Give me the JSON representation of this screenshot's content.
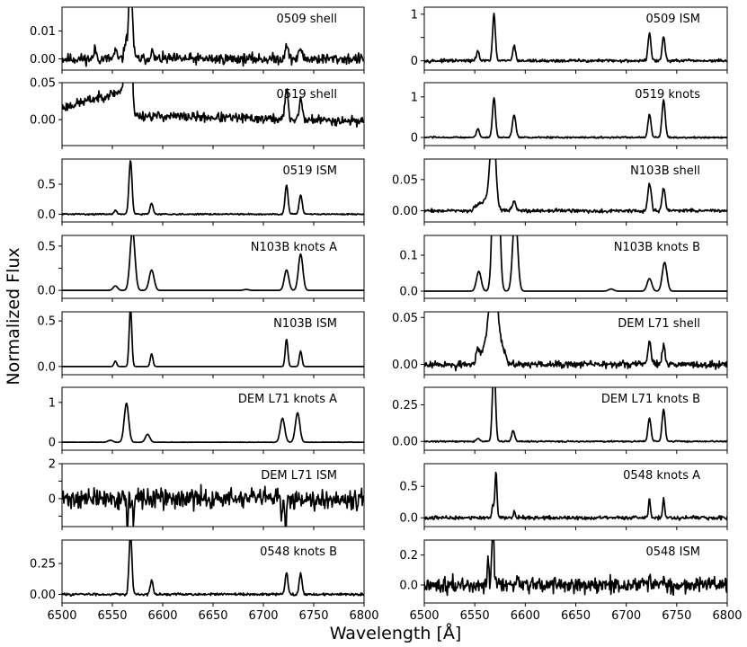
{
  "figure": {
    "ylabel": "Normalized Flux",
    "xlabel": "Wavelength [Å]"
  },
  "chart_data": [
    {
      "type": "line",
      "panel": "0509 shell",
      "xlim": [
        6500,
        6800
      ],
      "yticks": [
        0.0,
        0.01
      ],
      "ytick_labels": [
        "0.00",
        "0.01"
      ],
      "ylim": [
        -0.004,
        0.0185
      ],
      "lines": [
        {
          "w": 6533,
          "h": 0.0035,
          "s": 1.2
        },
        {
          "w": 6553,
          "h": 0.003,
          "s": 1.2
        },
        {
          "w": 6563,
          "h": 0.006,
          "s": 1.2
        },
        {
          "w": 6568,
          "h": 0.03,
          "s": 1.8
        },
        {
          "w": 6589,
          "h": 0.003,
          "s": 1.3
        },
        {
          "w": 6723,
          "h": 0.0055,
          "s": 1.4
        },
        {
          "w": 6737,
          "h": 0.004,
          "s": 1.4
        }
      ],
      "noise": 0.0012,
      "slope": [
        0.0,
        0.0
      ],
      "seed": 11
    },
    {
      "type": "line",
      "panel": "0519 shell",
      "xlim": [
        6500,
        6800
      ],
      "yticks": [
        0.0,
        0.05
      ],
      "ytick_labels": [
        "0.00",
        "0.05"
      ],
      "ylim": [
        -0.035,
        0.05
      ],
      "lines": [
        {
          "w": 6563,
          "h": 0.02,
          "s": 2
        },
        {
          "w": 6568,
          "h": 0.16,
          "s": 1.5
        },
        {
          "w": 6723,
          "h": 0.04,
          "s": 1.5
        },
        {
          "w": 6737,
          "h": 0.028,
          "s": 1.5
        }
      ],
      "noise": 0.004,
      "slope": [
        0.008,
        -0.002
      ],
      "ramp": {
        "start": 6500,
        "end": 6565,
        "v0": 0.008,
        "v1": 0.035
      },
      "seed": 23
    },
    {
      "type": "line",
      "panel": "0519 ISM",
      "xlim": [
        6500,
        6800
      ],
      "yticks": [
        0.0,
        0.5
      ],
      "ytick_labels": [
        "0.0",
        "0.5"
      ],
      "ylim": [
        -0.13,
        0.92
      ],
      "lines": [
        {
          "w": 6553,
          "h": 0.07,
          "s": 1.3
        },
        {
          "w": 6568,
          "h": 0.9,
          "s": 1.5
        },
        {
          "w": 6589,
          "h": 0.18,
          "s": 1.5
        },
        {
          "w": 6723,
          "h": 0.48,
          "s": 1.5
        },
        {
          "w": 6737,
          "h": 0.32,
          "s": 1.5
        }
      ],
      "noise": 0.007,
      "slope": [
        0.0,
        0.0
      ],
      "seed": 31
    },
    {
      "type": "line",
      "panel": "N103B knots A",
      "xlim": [
        6500,
        6800
      ],
      "yticks": [
        0.0,
        0.25,
        0.5
      ],
      "ytick_labels": [
        "0.0",
        "",
        "0.5"
      ],
      "ylim": [
        -0.09,
        0.62
      ],
      "lines": [
        {
          "w": 6553,
          "h": 0.05,
          "s": 2.2
        },
        {
          "w": 6570,
          "h": 0.68,
          "s": 2.4
        },
        {
          "w": 6589,
          "h": 0.23,
          "s": 2.4
        },
        {
          "w": 6683,
          "h": 0.01,
          "s": 2.5
        },
        {
          "w": 6723,
          "h": 0.23,
          "s": 2.2
        },
        {
          "w": 6737,
          "h": 0.41,
          "s": 2.2
        }
      ],
      "noise": 0.0,
      "slope": [
        0.0,
        0.0
      ],
      "seed": 41
    },
    {
      "type": "line",
      "panel": "N103B ISM",
      "xlim": [
        6500,
        6800
      ],
      "yticks": [
        0.0,
        0.5
      ],
      "ytick_labels": [
        "0.0",
        "0.5"
      ],
      "ylim": [
        -0.09,
        0.6
      ],
      "lines": [
        {
          "w": 6553,
          "h": 0.06,
          "s": 1.3
        },
        {
          "w": 6568,
          "h": 0.65,
          "s": 1.3
        },
        {
          "w": 6589,
          "h": 0.14,
          "s": 1.3
        },
        {
          "w": 6723,
          "h": 0.3,
          "s": 1.3
        },
        {
          "w": 6737,
          "h": 0.17,
          "s": 1.3
        }
      ],
      "noise": 0.0,
      "slope": [
        0.0,
        0.0
      ],
      "seed": 53
    },
    {
      "type": "line",
      "panel": "DEM L71 knots A",
      "xlim": [
        6500,
        6800
      ],
      "yticks": [
        0.0,
        1.0
      ],
      "ytick_labels": [
        "0",
        "1"
      ],
      "ylim": [
        -0.2,
        1.38
      ],
      "lines": [
        {
          "w": 6548,
          "h": 0.05,
          "s": 2.3
        },
        {
          "w": 6564,
          "h": 0.98,
          "s": 2.2
        },
        {
          "w": 6585,
          "h": 0.2,
          "s": 2.2
        },
        {
          "w": 6719,
          "h": 0.6,
          "s": 2.2
        },
        {
          "w": 6734,
          "h": 0.74,
          "s": 2.2
        }
      ],
      "noise": 0.003,
      "slope": [
        0.0,
        0.0
      ],
      "seed": 61
    },
    {
      "type": "line",
      "panel": "DEM L71 ISM",
      "xlim": [
        6500,
        6800
      ],
      "yticks": [
        -1.0,
        0.0,
        1.0,
        2.0
      ],
      "ytick_labels": [
        "",
        "0",
        "",
        "2"
      ],
      "ylim": [
        -1.6,
        2.0
      ],
      "lines": [],
      "noise": 0.35,
      "slope": [
        0.0,
        0.0
      ],
      "spikes": [
        {
          "w": 6565,
          "h": -1.8
        },
        {
          "w": 6571,
          "h": -1.5
        },
        {
          "w": 6718,
          "h": -1.4
        },
        {
          "w": 6722,
          "h": -1.8
        }
      ],
      "seed": 71
    },
    {
      "type": "line",
      "panel": "0548 knots B",
      "xlim": [
        6500,
        6800
      ],
      "yticks": [
        0.0,
        0.25
      ],
      "ytick_labels": [
        "0.00",
        "0.25"
      ],
      "ylim": [
        -0.07,
        0.44
      ],
      "lines": [
        {
          "w": 6553,
          "h": 0.01,
          "s": 1.2
        },
        {
          "w": 6568,
          "h": 0.5,
          "s": 1.4
        },
        {
          "w": 6589,
          "h": 0.11,
          "s": 1.4
        },
        {
          "w": 6723,
          "h": 0.17,
          "s": 1.4
        },
        {
          "w": 6737,
          "h": 0.17,
          "s": 1.4
        }
      ],
      "noise": 0.006,
      "slope": [
        0.0,
        0.0
      ],
      "seed": 83
    },
    {
      "type": "line",
      "panel": "0509 ISM",
      "xlim": [
        6500,
        6800
      ],
      "yticks": [
        0.0,
        0.5,
        1.0
      ],
      "ytick_labels": [
        "0",
        "",
        "1"
      ],
      "ylim": [
        -0.2,
        1.15
      ],
      "lines": [
        {
          "w": 6553,
          "h": 0.22,
          "s": 1.3
        },
        {
          "w": 6569,
          "h": 0.98,
          "s": 1.4
        },
        {
          "w": 6589,
          "h": 0.32,
          "s": 1.4
        },
        {
          "w": 6723,
          "h": 0.6,
          "s": 1.4
        },
        {
          "w": 6737,
          "h": 0.52,
          "s": 1.4
        }
      ],
      "noise": 0.02,
      "slope": [
        0.0,
        0.0
      ],
      "seed": 97
    },
    {
      "type": "line",
      "panel": "0519 knots",
      "xlim": [
        6500,
        6800
      ],
      "yticks": [
        0.0,
        0.5,
        1.0
      ],
      "ytick_labels": [
        "0",
        "",
        "1"
      ],
      "ylim": [
        -0.2,
        1.35
      ],
      "lines": [
        {
          "w": 6553,
          "h": 0.22,
          "s": 1.5
        },
        {
          "w": 6569,
          "h": 0.97,
          "s": 1.5
        },
        {
          "w": 6589,
          "h": 0.55,
          "s": 1.7
        },
        {
          "w": 6723,
          "h": 0.58,
          "s": 1.5
        },
        {
          "w": 6737,
          "h": 0.92,
          "s": 1.6
        }
      ],
      "noise": 0.012,
      "slope": [
        0.0,
        0.0
      ],
      "seed": 103
    },
    {
      "type": "line",
      "panel": "N103B shell",
      "xlim": [
        6500,
        6800
      ],
      "yticks": [
        0.0,
        0.05
      ],
      "ytick_labels": [
        "0.00",
        "0.05"
      ],
      "ylim": [
        -0.018,
        0.083
      ],
      "lines": [
        {
          "w": 6553,
          "h": 0.008,
          "s": 3
        },
        {
          "w": 6562,
          "h": 0.02,
          "s": 4
        },
        {
          "w": 6568,
          "h": 0.14,
          "s": 2.6
        },
        {
          "w": 6589,
          "h": 0.015,
          "s": 1.8
        },
        {
          "w": 6723,
          "h": 0.045,
          "s": 1.6
        },
        {
          "w": 6737,
          "h": 0.035,
          "s": 1.6
        }
      ],
      "noise": 0.0018,
      "slope": [
        0.0,
        0.0
      ],
      "seed": 109
    },
    {
      "type": "line",
      "panel": "N103B knots B",
      "xlim": [
        6500,
        6800
      ],
      "yticks": [
        0.0,
        0.05,
        0.1
      ],
      "ytick_labels": [
        "0.0",
        "",
        "0.1"
      ],
      "ylim": [
        -0.02,
        0.155
      ],
      "lines": [
        {
          "w": 6554,
          "h": 0.055,
          "s": 2.3
        },
        {
          "w": 6571,
          "h": 0.7,
          "s": 2.6
        },
        {
          "w": 6590,
          "h": 0.22,
          "s": 2.4
        },
        {
          "w": 6685,
          "h": 0.006,
          "s": 2.5
        },
        {
          "w": 6723,
          "h": 0.035,
          "s": 2.3
        },
        {
          "w": 6738,
          "h": 0.08,
          "s": 2.3
        }
      ],
      "noise": 0.0,
      "slope": [
        0.0,
        0.0
      ],
      "seed": 113
    },
    {
      "type": "line",
      "panel": "DEM L71 shell",
      "xlim": [
        6500,
        6800
      ],
      "yticks": [
        0.0,
        0.05
      ],
      "ytick_labels": [
        "0.00",
        "0.05"
      ],
      "ylim": [
        -0.011,
        0.056
      ],
      "lines": [
        {
          "w": 6553,
          "h": 0.012,
          "s": 1.5
        },
        {
          "w": 6565,
          "h": 0.03,
          "s": 6
        },
        {
          "w": 6569,
          "h": 0.09,
          "s": 3.5
        },
        {
          "w": 6578,
          "h": 0.012,
          "s": 3
        },
        {
          "w": 6723,
          "h": 0.025,
          "s": 1.5
        },
        {
          "w": 6737,
          "h": 0.02,
          "s": 1.5
        }
      ],
      "noise": 0.0022,
      "slope": [
        0.0,
        0.0
      ],
      "spikes": [
        {
          "w": 6531,
          "h": -0.006
        }
      ],
      "seed": 127
    },
    {
      "type": "line",
      "panel": "DEM L71 knots B",
      "xlim": [
        6500,
        6800
      ],
      "yticks": [
        0.0,
        0.25
      ],
      "ytick_labels": [
        "0.00",
        "0.25"
      ],
      "ylim": [
        -0.06,
        0.37
      ],
      "lines": [
        {
          "w": 6553,
          "h": 0.02,
          "s": 1.5
        },
        {
          "w": 6569,
          "h": 0.55,
          "s": 1.5
        },
        {
          "w": 6588,
          "h": 0.075,
          "s": 1.5
        },
        {
          "w": 6723,
          "h": 0.16,
          "s": 1.5
        },
        {
          "w": 6737,
          "h": 0.22,
          "s": 1.5
        }
      ],
      "noise": 0.003,
      "slope": [
        0.0,
        0.0
      ],
      "seed": 131
    },
    {
      "type": "line",
      "panel": "0548 knots A",
      "xlim": [
        6500,
        6800
      ],
      "yticks": [
        0.0,
        0.5
      ],
      "ytick_labels": [
        "0.0",
        "0.5"
      ],
      "ylim": [
        -0.14,
        0.86
      ],
      "lines": [
        {
          "w": 6568,
          "h": 0.2,
          "s": 1.0
        },
        {
          "w": 6571,
          "h": 0.72,
          "s": 1.0
        },
        {
          "w": 6589,
          "h": 0.1,
          "s": 1.0
        },
        {
          "w": 6723,
          "h": 0.3,
          "s": 1.0
        },
        {
          "w": 6737,
          "h": 0.3,
          "s": 1.0
        }
      ],
      "noise": 0.018,
      "slope": [
        0.0,
        0.0
      ],
      "seed": 137
    },
    {
      "type": "line",
      "panel": "0548 ISM",
      "xlim": [
        6500,
        6800
      ],
      "yticks": [
        0.0,
        0.2
      ],
      "ytick_labels": [
        "0.0",
        "0.2"
      ],
      "ylim": [
        -0.12,
        0.3
      ],
      "lines": [
        {
          "w": 6563,
          "h": 0.15,
          "s": 0.8
        },
        {
          "w": 6568,
          "h": 0.4,
          "s": 1.0
        },
        {
          "w": 6723,
          "h": 0.06,
          "s": 1.0
        },
        {
          "w": 6737,
          "h": 0.04,
          "s": 1.0
        }
      ],
      "noise": 0.032,
      "slope": [
        0.0,
        0.0
      ],
      "seed": 149
    }
  ]
}
